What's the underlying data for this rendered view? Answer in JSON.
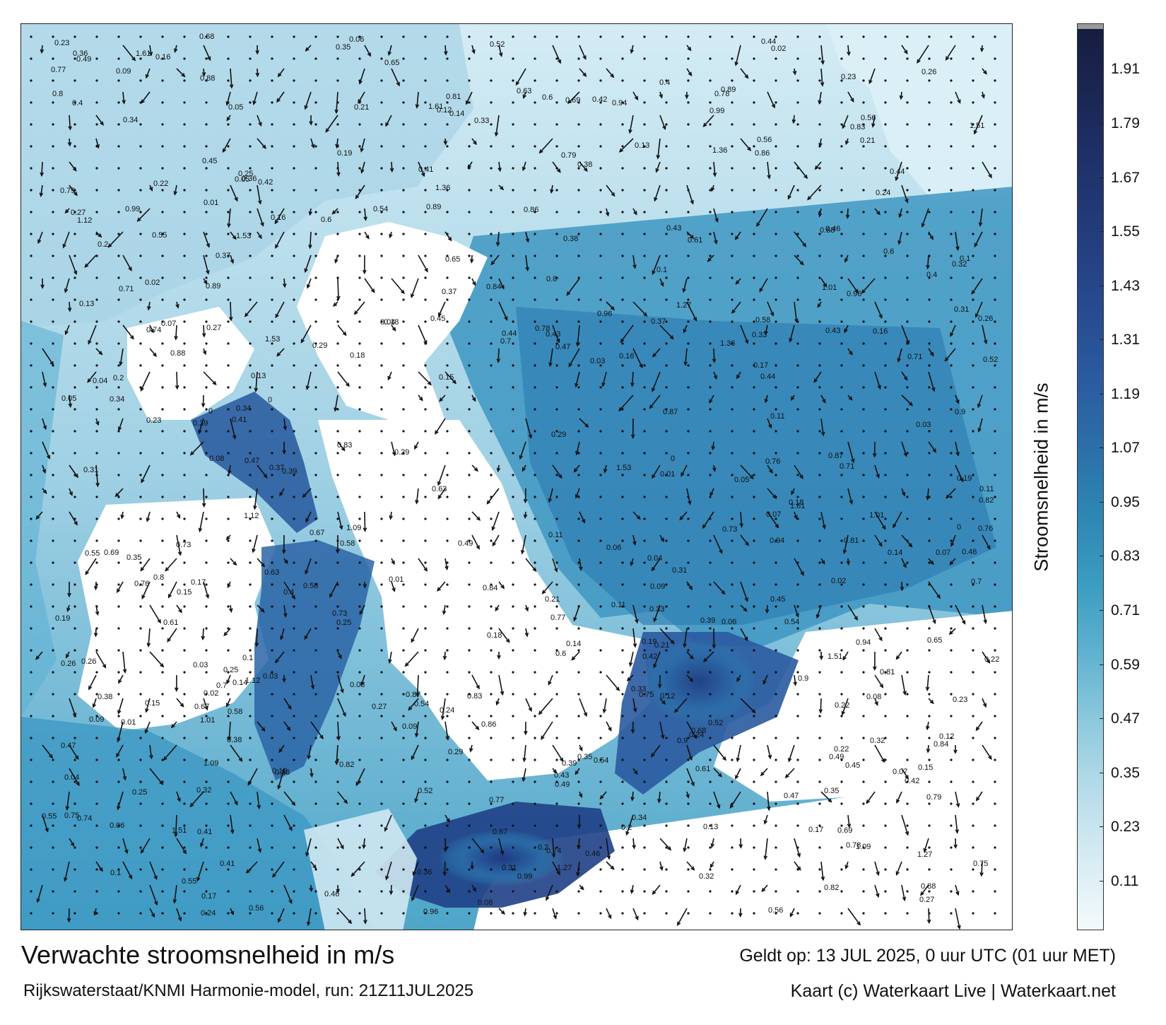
{
  "map": {
    "title": "Verwachte stroomsnelheid in m/s",
    "subtitle": "Rijkswaterstaat/KNMI Harmonie-model, run: 21Z11JUL2025",
    "valid_time": "Geldt op: 13 JUL 2025, 0 uur UTC (01 uur MET)",
    "credit": "Kaart (c) Waterkaart Live | Waterkaart.net",
    "water_color_light": "#e9f5fa",
    "water_color_mid": "#2e95bd",
    "water_color_dark": "#1d3c7c",
    "land_color": "#ffffff",
    "speed_labels": [
      "0.16",
      "0.25",
      "0.17",
      "0.32",
      "0.22",
      "0.27",
      "0.2",
      "0.18",
      "0.21",
      "0.19",
      "0.29",
      "0.36",
      "0.34",
      "0.31",
      "0.38",
      "0.35",
      "0.4",
      "0.24",
      "0.46",
      "0.54",
      "0.43",
      "0.41",
      "0.45",
      "0.23",
      "0.26",
      "0.33",
      "0.15",
      "0.14",
      "0.12",
      "0.11",
      "0.13",
      "0.1",
      "0.09",
      "0.08",
      "0.07",
      "0.06",
      "0.05",
      "0.04",
      "0.03",
      "0.02",
      "0.01",
      "0",
      "0.42",
      "0.39",
      "0.37",
      "0.44",
      "0.47",
      "0.52",
      "0.49",
      "0.55",
      "0.56",
      "0.58",
      "0.6",
      "0.61",
      "0.63",
      "0.65",
      "0.67",
      "0.68",
      "0.69",
      "0.7",
      "0.71",
      "0.73",
      "0.74",
      "0.75",
      "0.76",
      "0.77",
      "0.78",
      "0.79",
      "0.8",
      "0.81",
      "0.82",
      "0.83",
      "0.84",
      "0.86",
      "0.87",
      "0.88",
      "0.89",
      "0.9",
      "0.94",
      "0.96",
      "0.99",
      "1.01",
      "1.09",
      "1.12",
      "1.27",
      "1.36",
      "1.51",
      "1.53",
      "1.61"
    ]
  },
  "colorbar": {
    "label": "Stroomsnelheid in m/s",
    "ticks": [
      "1.91",
      "1.79",
      "1.67",
      "1.55",
      "1.43",
      "1.31",
      "1.19",
      "1.07",
      "0.95",
      "0.83",
      "0.71",
      "0.59",
      "0.47",
      "0.35",
      "0.23",
      "0.11"
    ],
    "tick_values": [
      1.91,
      1.79,
      1.67,
      1.55,
      1.43,
      1.31,
      1.19,
      1.07,
      0.95,
      0.83,
      0.71,
      0.59,
      0.47,
      0.35,
      0.23,
      0.11
    ],
    "min": 0,
    "max": 2.0,
    "colors": [
      "#f4fafc",
      "#d7ecf3",
      "#b7dce9",
      "#8dc9de",
      "#5fb1cf",
      "#3b9cc1",
      "#2d86b3",
      "#2c6ea8",
      "#2b5a9f",
      "#274a8f",
      "#233d7d",
      "#1f326a",
      "#1b2755",
      "#161e3f"
    ]
  }
}
